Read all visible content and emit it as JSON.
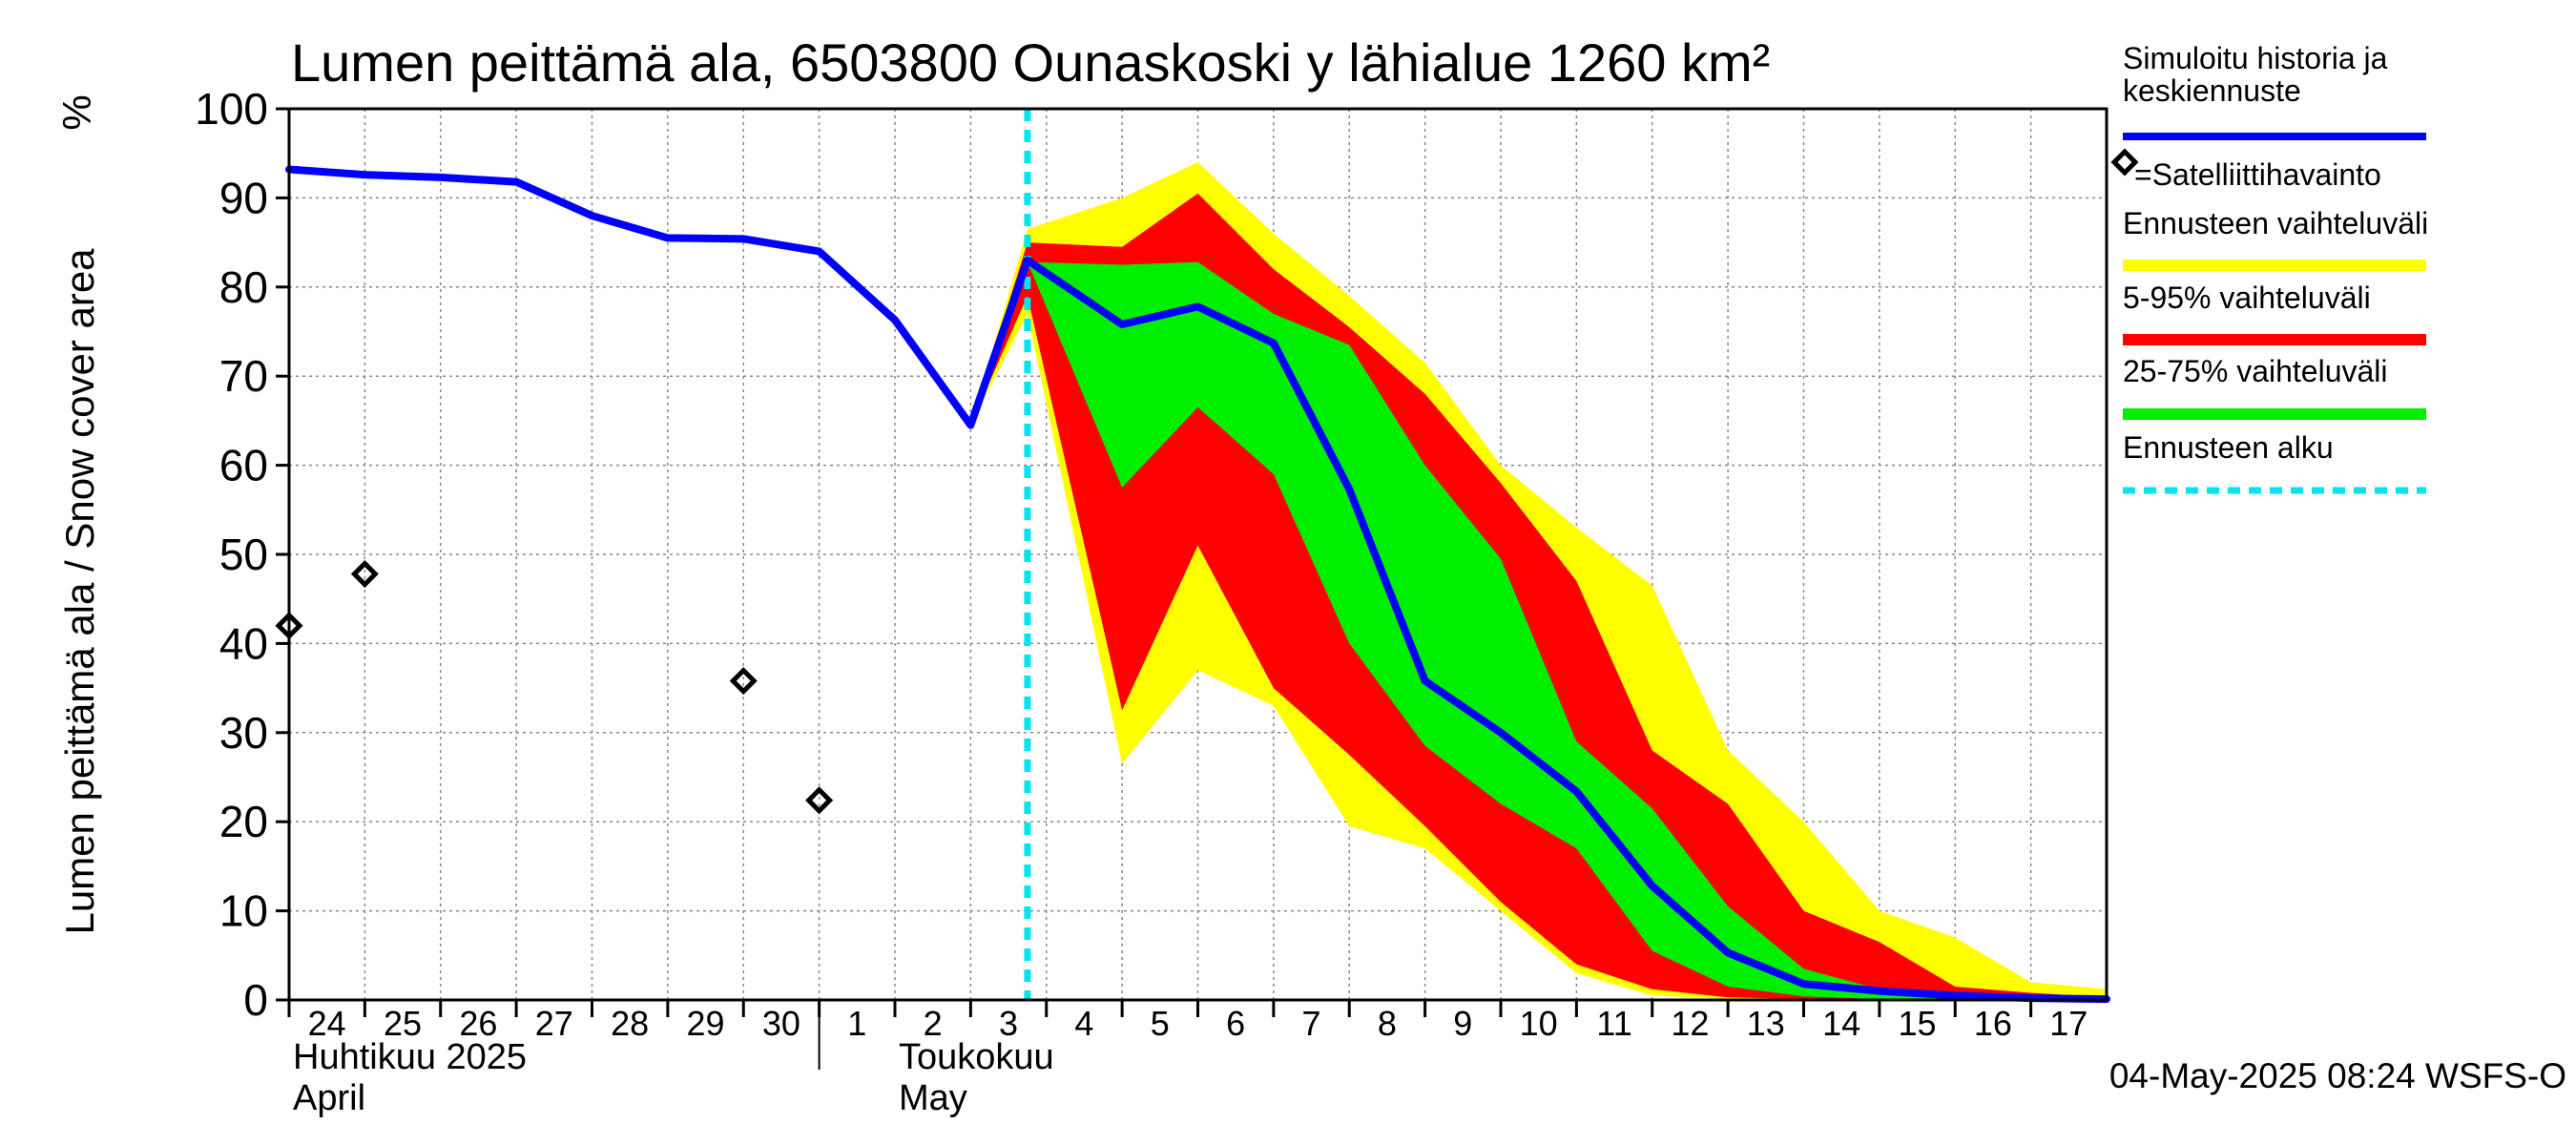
{
  "chart_data": {
    "type": "area",
    "title": "Lumen peittämä ala, 6503800 Ounaskoski y lähialue 1260 km²",
    "ylabel": "Lumen peittämä ala / Snow cover area",
    "yunit": "%",
    "ylim": [
      0,
      100
    ],
    "yticks": [
      0,
      10,
      20,
      30,
      40,
      50,
      60,
      70,
      80,
      90,
      100
    ],
    "x_range": [
      "2025-04-24",
      "2025-05-18"
    ],
    "x_ticks": [
      {
        "label": "24",
        "date": "2025-04-24"
      },
      {
        "label": "25",
        "date": "2025-04-25"
      },
      {
        "label": "26",
        "date": "2025-04-26"
      },
      {
        "label": "27",
        "date": "2025-04-27"
      },
      {
        "label": "28",
        "date": "2025-04-28"
      },
      {
        "label": "29",
        "date": "2025-04-29"
      },
      {
        "label": "30",
        "date": "2025-04-30"
      },
      {
        "label": "1",
        "date": "2025-05-01"
      },
      {
        "label": "2",
        "date": "2025-05-02"
      },
      {
        "label": "3",
        "date": "2025-05-03"
      },
      {
        "label": "4",
        "date": "2025-05-04"
      },
      {
        "label": "5",
        "date": "2025-05-05"
      },
      {
        "label": "6",
        "date": "2025-05-06"
      },
      {
        "label": "7",
        "date": "2025-05-07"
      },
      {
        "label": "8",
        "date": "2025-05-08"
      },
      {
        "label": "9",
        "date": "2025-05-09"
      },
      {
        "label": "10",
        "date": "2025-05-10"
      },
      {
        "label": "11",
        "date": "2025-05-11"
      },
      {
        "label": "12",
        "date": "2025-05-12"
      },
      {
        "label": "13",
        "date": "2025-05-13"
      },
      {
        "label": "14",
        "date": "2025-05-14"
      },
      {
        "label": "15",
        "date": "2025-05-15"
      },
      {
        "label": "16",
        "date": "2025-05-16"
      },
      {
        "label": "17",
        "date": "2025-05-17"
      }
    ],
    "month_labels": [
      {
        "line1": "Huhtikuu  2025",
        "line2": "April",
        "date": "2025-04-24"
      },
      {
        "line1": "Toukokuu",
        "line2": "May",
        "date": "2025-05-02"
      }
    ],
    "month_boundary": "2025-05-01",
    "forecast_start": "2025-05-04",
    "grid": true,
    "legend_position": "right",
    "legend": [
      {
        "label_lines": [
          "Simuloitu historia ja",
          "keskiennuste"
        ],
        "color": "#0000ff",
        "style": "line"
      },
      {
        "label_lines": [
          "=Satelliittihavainto"
        ],
        "color": "#000000",
        "style": "diamond"
      },
      {
        "label_lines": [
          "Ennusteen vaihteluväli"
        ],
        "color": "#ffff00",
        "style": "band"
      },
      {
        "label_lines": [
          "5-95% vaihteluväli"
        ],
        "color": "#ff0000",
        "style": "band"
      },
      {
        "label_lines": [
          "25-75% vaihteluväli"
        ],
        "color": "#00ee00",
        "style": "band"
      },
      {
        "label_lines": [
          "Ennusteen alku"
        ],
        "color": "#00e5ee",
        "style": "dashed"
      }
    ],
    "series": [
      {
        "name": "Simuloitu historia ja keskiennuste",
        "color": "#0000ff",
        "points": [
          [
            "2025-04-24 00:00",
            93.2
          ],
          [
            "2025-04-25 00:00",
            92.6
          ],
          [
            "2025-04-26 00:00",
            92.3
          ],
          [
            "2025-04-27 00:00",
            91.8
          ],
          [
            "2025-04-28 00:00",
            88.0
          ],
          [
            "2025-04-29 00:00",
            85.5
          ],
          [
            "2025-04-30 00:00",
            85.4
          ],
          [
            "2025-05-01 00:00",
            84.0
          ],
          [
            "2025-05-02 00:00",
            76.3
          ],
          [
            "2025-05-03 00:00",
            64.5
          ],
          [
            "2025-05-03 18:00",
            83.0
          ],
          [
            "2025-05-05 00:00",
            75.8
          ],
          [
            "2025-05-06 00:00",
            77.8
          ],
          [
            "2025-05-07 00:00",
            73.7
          ],
          [
            "2025-05-08 00:00",
            57.3
          ],
          [
            "2025-05-09 00:00",
            35.8
          ],
          [
            "2025-05-10 00:00",
            30.0
          ],
          [
            "2025-05-11 00:00",
            23.4
          ],
          [
            "2025-05-12 00:00",
            12.8
          ],
          [
            "2025-05-13 00:00",
            5.3
          ],
          [
            "2025-05-14 00:00",
            1.8
          ],
          [
            "2025-05-15 00:00",
            1.0
          ],
          [
            "2025-05-16 00:00",
            0.5
          ],
          [
            "2025-05-17 00:00",
            0.2
          ],
          [
            "2025-05-18 00:00",
            0.1
          ]
        ]
      }
    ],
    "bands": [
      {
        "name": "Ennusteen vaihteluväli",
        "color": "#ffff00",
        "upper": [
          [
            "2025-05-03 00:00",
            64.5
          ],
          [
            "2025-05-03 18:00",
            86.5
          ],
          [
            "2025-05-05 00:00",
            90.0
          ],
          [
            "2025-05-06 00:00",
            94.0
          ],
          [
            "2025-05-07 00:00",
            86.0
          ],
          [
            "2025-05-08 00:00",
            79.0
          ],
          [
            "2025-05-09 00:00",
            71.5
          ],
          [
            "2025-05-10 00:00",
            60.0
          ],
          [
            "2025-05-11 00:00",
            53.0
          ],
          [
            "2025-05-12 00:00",
            46.5
          ],
          [
            "2025-05-13 00:00",
            28.0
          ],
          [
            "2025-05-14 00:00",
            20.0
          ],
          [
            "2025-05-15 00:00",
            10.0
          ],
          [
            "2025-05-16 00:00",
            7.0
          ],
          [
            "2025-05-17 00:00",
            2.0
          ],
          [
            "2025-05-18 00:00",
            1.2
          ]
        ],
        "lower": [
          [
            "2025-05-03 00:00",
            64.5
          ],
          [
            "2025-05-03 18:00",
            77.0
          ],
          [
            "2025-05-05 00:00",
            26.5
          ],
          [
            "2025-05-06 00:00",
            37.0
          ],
          [
            "2025-05-07 00:00",
            33.0
          ],
          [
            "2025-05-08 00:00",
            19.5
          ],
          [
            "2025-05-09 00:00",
            17.0
          ],
          [
            "2025-05-10 00:00",
            10.0
          ],
          [
            "2025-05-11 00:00",
            3.0
          ],
          [
            "2025-05-12 00:00",
            0.5
          ],
          [
            "2025-05-13 00:00",
            0.1
          ],
          [
            "2025-05-14 00:00",
            0.0
          ],
          [
            "2025-05-15 00:00",
            0.0
          ],
          [
            "2025-05-16 00:00",
            0.0
          ],
          [
            "2025-05-17 00:00",
            0.0
          ],
          [
            "2025-05-18 00:00",
            0.0
          ]
        ]
      },
      {
        "name": "5-95% vaihteluväli",
        "color": "#ff0000",
        "upper": [
          [
            "2025-05-03 00:00",
            64.5
          ],
          [
            "2025-05-03 18:00",
            85.0
          ],
          [
            "2025-05-05 00:00",
            84.5
          ],
          [
            "2025-05-06 00:00",
            90.5
          ],
          [
            "2025-05-07 00:00",
            82.0
          ],
          [
            "2025-05-08 00:00",
            75.5
          ],
          [
            "2025-05-09 00:00",
            68.0
          ],
          [
            "2025-05-10 00:00",
            58.0
          ],
          [
            "2025-05-11 00:00",
            47.0
          ],
          [
            "2025-05-12 00:00",
            28.0
          ],
          [
            "2025-05-13 00:00",
            22.0
          ],
          [
            "2025-05-14 00:00",
            10.0
          ],
          [
            "2025-05-15 00:00",
            6.5
          ],
          [
            "2025-05-16 00:00",
            1.5
          ],
          [
            "2025-05-17 00:00",
            0.8
          ],
          [
            "2025-05-18 00:00",
            0.3
          ]
        ],
        "lower": [
          [
            "2025-05-03 00:00",
            64.5
          ],
          [
            "2025-05-03 18:00",
            79.0
          ],
          [
            "2025-05-05 00:00",
            32.5
          ],
          [
            "2025-05-06 00:00",
            51.0
          ],
          [
            "2025-05-07 00:00",
            35.0
          ],
          [
            "2025-05-08 00:00",
            27.5
          ],
          [
            "2025-05-09 00:00",
            19.5
          ],
          [
            "2025-05-10 00:00",
            11.0
          ],
          [
            "2025-05-11 00:00",
            4.0
          ],
          [
            "2025-05-12 00:00",
            1.2
          ],
          [
            "2025-05-13 00:00",
            0.3
          ],
          [
            "2025-05-14 00:00",
            0.1
          ],
          [
            "2025-05-15 00:00",
            0.0
          ],
          [
            "2025-05-16 00:00",
            0.0
          ],
          [
            "2025-05-17 00:00",
            0.0
          ],
          [
            "2025-05-18 00:00",
            0.0
          ]
        ]
      },
      {
        "name": "25-75% vaihteluväli",
        "color": "#00ee00",
        "upper": [
          [
            "2025-05-03 18:00",
            82.8
          ],
          [
            "2025-05-05 00:00",
            82.5
          ],
          [
            "2025-05-06 00:00",
            82.8
          ],
          [
            "2025-05-07 00:00",
            77.0
          ],
          [
            "2025-05-08 00:00",
            73.5
          ],
          [
            "2025-05-09 00:00",
            60.0
          ],
          [
            "2025-05-10 00:00",
            49.5
          ],
          [
            "2025-05-11 00:00",
            29.0
          ],
          [
            "2025-05-12 00:00",
            21.5
          ],
          [
            "2025-05-13 00:00",
            10.5
          ],
          [
            "2025-05-14 00:00",
            3.5
          ],
          [
            "2025-05-15 00:00",
            1.2
          ],
          [
            "2025-05-16 00:00",
            0.6
          ],
          [
            "2025-05-17 00:00",
            0.3
          ],
          [
            "2025-05-18 00:00",
            0.1
          ]
        ],
        "lower": [
          [
            "2025-05-03 18:00",
            82.8
          ],
          [
            "2025-05-05 00:00",
            57.5
          ],
          [
            "2025-05-06 00:00",
            66.5
          ],
          [
            "2025-05-07 00:00",
            59.0
          ],
          [
            "2025-05-08 00:00",
            40.0
          ],
          [
            "2025-05-09 00:00",
            28.5
          ],
          [
            "2025-05-10 00:00",
            22.0
          ],
          [
            "2025-05-11 00:00",
            17.0
          ],
          [
            "2025-05-12 00:00",
            5.5
          ],
          [
            "2025-05-13 00:00",
            1.5
          ],
          [
            "2025-05-14 00:00",
            0.4
          ],
          [
            "2025-05-15 00:00",
            0.1
          ],
          [
            "2025-05-16 00:00",
            0.0
          ],
          [
            "2025-05-17 00:00",
            0.0
          ],
          [
            "2025-05-18 00:00",
            0.0
          ]
        ]
      }
    ],
    "satellite_observations": [
      [
        "2025-04-24 00:00",
        42.0
      ],
      [
        "2025-04-25 00:00",
        47.8
      ],
      [
        "2025-04-30 00:00",
        35.8
      ],
      [
        "2025-05-01 00:00",
        22.4
      ]
    ]
  },
  "footer": {
    "timestamp": "04-May-2025 08:24 WSFS-O"
  }
}
